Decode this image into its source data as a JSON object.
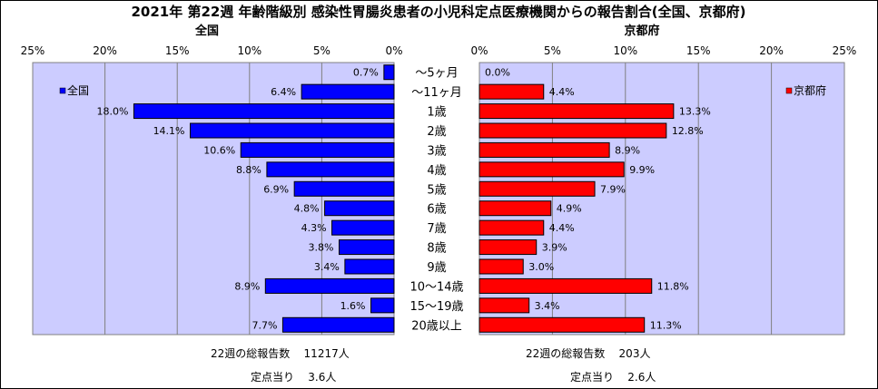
{
  "title": "2021年 第22週 年齢階級別 感染性胃腸炎患者の小児科定点医療機関からの報告割合(全国、京都府)",
  "chart_data": {
    "type": "bar",
    "orientation": "horizontal-butterfly",
    "categories": [
      "～5ヶ月",
      "～11ヶ月",
      "1歳",
      "2歳",
      "3歳",
      "4歳",
      "5歳",
      "6歳",
      "7歳",
      "8歳",
      "9歳",
      "10～14歳",
      "15～19歳",
      "20歳以上"
    ],
    "xlim": [
      0,
      25
    ],
    "ticks": [
      "25%",
      "20%",
      "15%",
      "10%",
      "5%",
      "0%"
    ],
    "ticks_right": [
      "0%",
      "5%",
      "10%",
      "15%",
      "20%",
      "25%"
    ],
    "grid": true,
    "series": [
      {
        "name": "全国",
        "color": "#0000ff",
        "panel_title": "全国",
        "legend": "top-left",
        "values": [
          0.7,
          6.4,
          18.0,
          14.1,
          10.6,
          8.8,
          6.9,
          4.8,
          4.3,
          3.8,
          3.4,
          8.9,
          1.6,
          7.7
        ],
        "labels": [
          "0.7%",
          "6.4%",
          "18.0%",
          "14.1%",
          "10.6%",
          "8.8%",
          "6.9%",
          "4.8%",
          "4.3%",
          "3.8%",
          "3.4%",
          "8.9%",
          "1.6%",
          "7.7%"
        ]
      },
      {
        "name": "京都府",
        "color": "#ff0000",
        "panel_title": "京都府",
        "legend": "top-right",
        "values": [
          0.0,
          4.4,
          13.3,
          12.8,
          8.9,
          9.9,
          7.9,
          4.9,
          4.4,
          3.9,
          3.0,
          11.8,
          3.4,
          11.3
        ],
        "labels": [
          "0.0%",
          "4.4%",
          "13.3%",
          "12.8%",
          "8.9%",
          "9.9%",
          "7.9%",
          "4.9%",
          "4.4%",
          "3.9%",
          "3.0%",
          "11.8%",
          "3.4%",
          "11.3%"
        ]
      }
    ]
  },
  "footer": {
    "national": {
      "total_label": "22週の総報告数",
      "total_value": "11217人",
      "per_label": "定点当り",
      "per_value": "3.6人"
    },
    "kyoto": {
      "total_label": "22週の総報告数",
      "total_value": "203人",
      "per_label": "定点当り",
      "per_value": "2.6人"
    }
  },
  "colors": {
    "plot_bg": "#ccccff",
    "bar_outline": "#000000"
  }
}
